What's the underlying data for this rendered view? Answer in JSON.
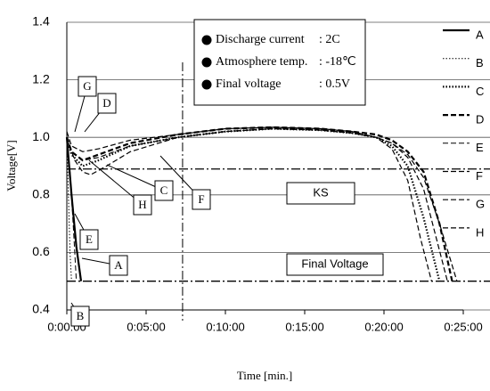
{
  "chart_data": {
    "type": "line",
    "xlabel": "Time [min.]",
    "ylabel": "Voltage[V]",
    "xlim": [
      0,
      25
    ],
    "ylim": [
      0.4,
      1.4
    ],
    "xticks": [
      {
        "value": 0,
        "label": "0:00:00"
      },
      {
        "value": 5,
        "label": "0:05:00"
      },
      {
        "value": 10,
        "label": "0:10:00"
      },
      {
        "value": 15,
        "label": "0:15:00"
      },
      {
        "value": 20,
        "label": "0:20:00"
      },
      {
        "value": 25,
        "label": "0:25:00"
      }
    ],
    "yticks": [
      0.4,
      0.6,
      0.8,
      {
        "value": 1,
        "label": "1.0"
      },
      1.2,
      1.4
    ],
    "grid": true,
    "conditions": [
      {
        "label": "Discharge current",
        "value": ": 2C"
      },
      {
        "label": "Atmosphere temp.",
        "value": ": -18℃"
      },
      {
        "label": "Final voltage",
        "value": ": 0.5V"
      }
    ],
    "reference_lines": [
      {
        "label": "KS",
        "value": 0.89
      },
      {
        "label": "Final Voltage",
        "value": 0.5
      }
    ],
    "vline": 7.3,
    "series": [
      {
        "name": "A",
        "color": "#000",
        "style": "solid",
        "width": 2.2,
        "x": [
          0,
          0.3,
          0.6,
          0.9
        ],
        "values": [
          1.0,
          0.8,
          0.62,
          0.5
        ]
      },
      {
        "name": "B",
        "color": "#000",
        "style": "dotted",
        "width": 1,
        "x": [
          0,
          0.1,
          0.2,
          0.3
        ],
        "values": [
          1.0,
          0.8,
          0.6,
          0.5
        ]
      },
      {
        "name": "C",
        "color": "#000",
        "style": "dotted",
        "width": 2.2,
        "x": [
          0,
          0.3,
          1,
          2,
          4,
          7,
          10,
          13,
          16,
          18,
          19.5,
          20.5,
          21.5,
          22.5,
          23.5
        ],
        "values": [
          1.0,
          0.94,
          0.9,
          0.92,
          0.97,
          1.0,
          1.02,
          1.03,
          1.025,
          1.015,
          1.0,
          0.97,
          0.9,
          0.72,
          0.5
        ]
      },
      {
        "name": "D",
        "color": "#000",
        "style": "dashed",
        "width": 2.2,
        "x": [
          0,
          0.3,
          1,
          2,
          4,
          7,
          10,
          13,
          16,
          18,
          19.5,
          20.5,
          21.5,
          22.5,
          23.5,
          24.3
        ],
        "values": [
          1.0,
          0.95,
          0.92,
          0.94,
          0.98,
          1.01,
          1.03,
          1.035,
          1.03,
          1.02,
          1.01,
          0.99,
          0.95,
          0.88,
          0.7,
          0.5
        ]
      },
      {
        "name": "E",
        "color": "#000",
        "style": "dashed",
        "width": 1,
        "x": [
          0,
          0.2,
          0.4,
          0.6
        ],
        "values": [
          1.0,
          0.88,
          0.7,
          0.5
        ]
      },
      {
        "name": "F",
        "color": "#000",
        "style": "dashed",
        "width": 1.2,
        "x": [
          0,
          0.3,
          1,
          2,
          4,
          7,
          10,
          13,
          16,
          18,
          19.5,
          20.5,
          21.5,
          22.5,
          23.3,
          24.0
        ],
        "values": [
          1.0,
          0.95,
          0.92,
          0.93,
          0.97,
          1.0,
          1.02,
          1.03,
          1.025,
          1.015,
          1.0,
          0.98,
          0.93,
          0.82,
          0.65,
          0.5
        ]
      },
      {
        "name": "G",
        "color": "#000",
        "style": "dashed",
        "width": 1.2,
        "x": [
          0,
          0.3,
          1,
          2,
          4,
          7,
          10,
          13,
          16,
          18,
          19.5,
          20.5,
          21.5,
          22.3,
          23.0
        ],
        "values": [
          1.02,
          0.97,
          0.95,
          0.96,
          0.99,
          1.01,
          1.03,
          1.035,
          1.03,
          1.02,
          1.0,
          0.96,
          0.85,
          0.65,
          0.5
        ]
      },
      {
        "name": "H",
        "color": "#000",
        "style": "dashed",
        "width": 1.2,
        "x": [
          0,
          0.5,
          1,
          1.5,
          2.5,
          4,
          7,
          10,
          13,
          16,
          18,
          19.5,
          20.5,
          21.5,
          22.5,
          23.5,
          24.6
        ],
        "values": [
          1.0,
          0.92,
          0.88,
          0.87,
          0.9,
          0.95,
          1.0,
          1.02,
          1.03,
          1.025,
          1.015,
          1.0,
          0.98,
          0.94,
          0.86,
          0.7,
          0.5
        ]
      }
    ]
  }
}
